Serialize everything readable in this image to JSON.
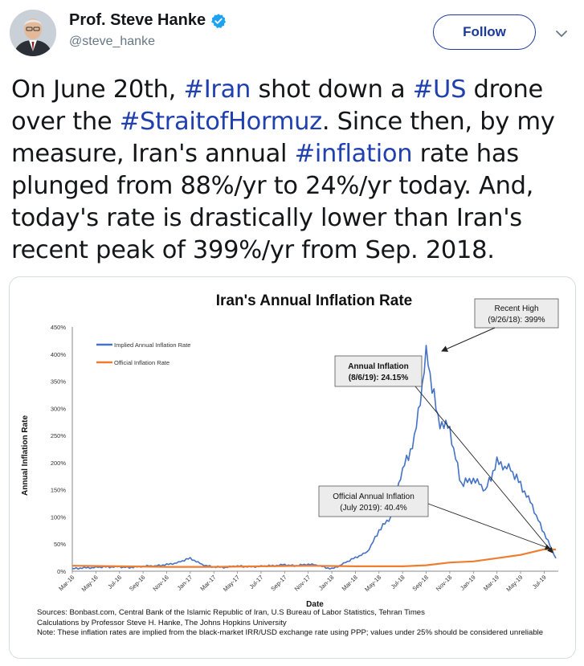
{
  "author": {
    "name": "Prof. Steve Hanke",
    "handle": "@steve_hanke",
    "verified": true,
    "avatar_icon": "profile-photo"
  },
  "follow_label": "Follow",
  "tweet": {
    "parts": [
      {
        "text": "On June 20th, ",
        "tag": false
      },
      {
        "text": "#Iran",
        "tag": true
      },
      {
        "text": " shot down a ",
        "tag": false
      },
      {
        "text": "#US",
        "tag": true
      },
      {
        "text": " drone over the ",
        "tag": false
      },
      {
        "text": "#StraitofHormuz",
        "tag": true
      },
      {
        "text": ". Since then, by my measure, Iran's annual ",
        "tag": false
      },
      {
        "text": "#inflation",
        "tag": true
      },
      {
        "text": " rate has plunged from 88%/yr to 24%/yr today. And, today's rate is drastically lower than Iran's recent peak of 399%/yr from Sep. 2018.",
        "tag": false
      }
    ]
  },
  "colors": {
    "accent": "#1b3a9a",
    "hashtag": "#2040b0",
    "implied": "#4472c4",
    "official": "#ed7d31"
  },
  "chart_data": {
    "type": "line",
    "title": "Iran's Annual Inflation Rate",
    "xlabel": "Date",
    "ylabel": "Annual Inflation Rate",
    "ylim": [
      0,
      450
    ],
    "yticks": [
      "0%",
      "50%",
      "100%",
      "150%",
      "200%",
      "250%",
      "300%",
      "350%",
      "400%",
      "450%"
    ],
    "xticks": [
      "Mar-16",
      "May-16",
      "Jul-16",
      "Sep-16",
      "Nov-16",
      "Jan-17",
      "Mar-17",
      "May-17",
      "Jul-17",
      "Sep-17",
      "Nov-17",
      "Jan-18",
      "Mar-18",
      "May-18",
      "Jul-18",
      "Sep-18",
      "Nov-18",
      "Jan-19",
      "Mar-19",
      "May-19",
      "Jul-19"
    ],
    "series": [
      {
        "name": "Implied Annual Inflation Rate",
        "color": "#4472c4",
        "x": [
          "Mar-16",
          "Apr-16",
          "May-16",
          "Jun-16",
          "Jul-16",
          "Aug-16",
          "Sep-16",
          "Oct-16",
          "Nov-16",
          "Dec-16",
          "Jan-17",
          "Feb-17",
          "Mar-17",
          "Apr-17",
          "May-17",
          "Jun-17",
          "Jul-17",
          "Aug-17",
          "Sep-17",
          "Oct-17",
          "Nov-17",
          "Dec-17",
          "Jan-18",
          "Feb-18",
          "Mar-18",
          "Apr-18",
          "May-18",
          "Jun-18",
          "Jul-18",
          "Aug-18",
          "Sep-18",
          "Oct-18",
          "Nov-18",
          "Dec-18",
          "Jan-19",
          "Feb-19",
          "Mar-19",
          "Apr-19",
          "May-19",
          "Jun-19",
          "Jul-19",
          "Aug-19"
        ],
        "values": [
          5,
          6,
          7,
          8,
          8,
          7,
          9,
          10,
          12,
          16,
          24,
          12,
          8,
          7,
          10,
          8,
          9,
          10,
          12,
          10,
          13,
          10,
          4,
          14,
          25,
          35,
          75,
          100,
          190,
          240,
          399,
          280,
          260,
          160,
          170,
          150,
          200,
          190,
          160,
          120,
          70,
          24
        ]
      },
      {
        "name": "Official Inflation Rate",
        "color": "#ed7d31",
        "x": [
          "Mar-16",
          "Jul-16",
          "Nov-16",
          "Mar-17",
          "Jul-17",
          "Nov-17",
          "Mar-18",
          "Jul-18",
          "Sep-18",
          "Nov-18",
          "Jan-19",
          "Mar-19",
          "May-19",
          "Jul-19",
          "Aug-19"
        ],
        "values": [
          10,
          9,
          8,
          8,
          9,
          10,
          9,
          9,
          11,
          16,
          18,
          24,
          30,
          40.4,
          40
        ]
      }
    ],
    "annotations": [
      {
        "title": "Recent High",
        "detail": "(9/26/18): 399%"
      },
      {
        "title": "Annual Inflation",
        "detail": "(8/6/19): 24.15%"
      },
      {
        "title": "Official Annual Inflation",
        "detail": "(July 2019): 40.4%"
      }
    ],
    "legend_position": "top-left",
    "grid": false
  },
  "sources": [
    "Sources: Bonbast.com, Central Bank of the Islamic Republic of Iran, U.S Bureau of Labor Statistics, Tehran Times",
    "Calculations by Professor Steve H. Hanke, The Johns Hopkins University",
    "Note: These inflation rates are implied from the black-market IRR/USD exchange rate using PPP; values under 25% should be considered unreliable"
  ]
}
